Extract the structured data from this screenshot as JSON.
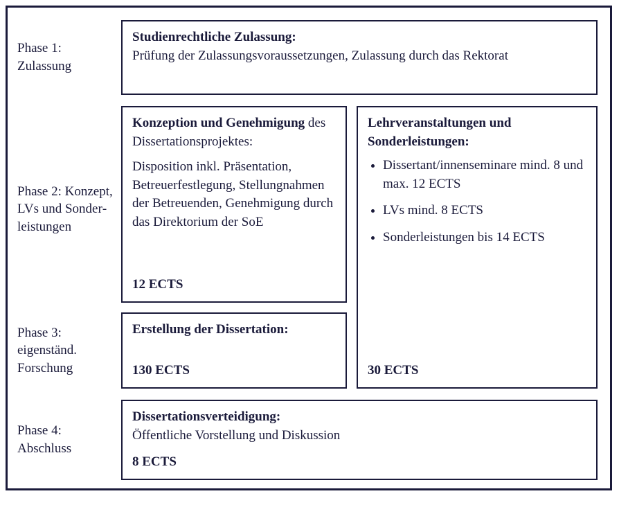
{
  "colors": {
    "text": "#1a1a3a",
    "border": "#1a1a3a",
    "background": "#ffffff"
  },
  "typography": {
    "font_family": "Georgia, 'Times New Roman', serif",
    "base_size_pt": 14,
    "line_height": 1.4
  },
  "phase1": {
    "label": "Phase 1: Zulassung",
    "box": {
      "title": "Studienrechtliche Zulassung:",
      "body": "Prüfung der Zulassungsvoraussetzungen, Zulassung durch das Rektorat"
    }
  },
  "phase2": {
    "label": "Phase 2: Konzept, LVs und Sonder­leistungen",
    "left": {
      "title_bold": "Konzeption und Genehmi­gung",
      "title_rest": " des Dissertationsprojek­tes:",
      "body": "Disposition inkl. Präsentation, Betreuerfestlegung, Stellung­nahmen der Betreuenden, Genehmigung durch das Direktorium der SoE",
      "ects": "12 ECTS"
    },
    "right": {
      "title": "Lehrveranstaltungen und Sonderleistungen:",
      "items": [
        "Dissertant/innenseminare mind. 8 und max. 12 ECTS",
        "LVs mind. 8 ECTS",
        "Sonderleistungen  bis 14 ECTS"
      ],
      "ects": "30 ECTS"
    }
  },
  "phase3": {
    "label": "Phase 3: eigenständ. Forschung",
    "box": {
      "title": "Erstellung der Dissertation:",
      "ects": "130 ECTS"
    }
  },
  "phase4": {
    "label": "Phase 4: Abschluss",
    "box": {
      "title": "Dissertationsverteidigung:",
      "body": "Öffentliche Vorstellung und Diskussion",
      "ects": "8 ECTS"
    }
  }
}
